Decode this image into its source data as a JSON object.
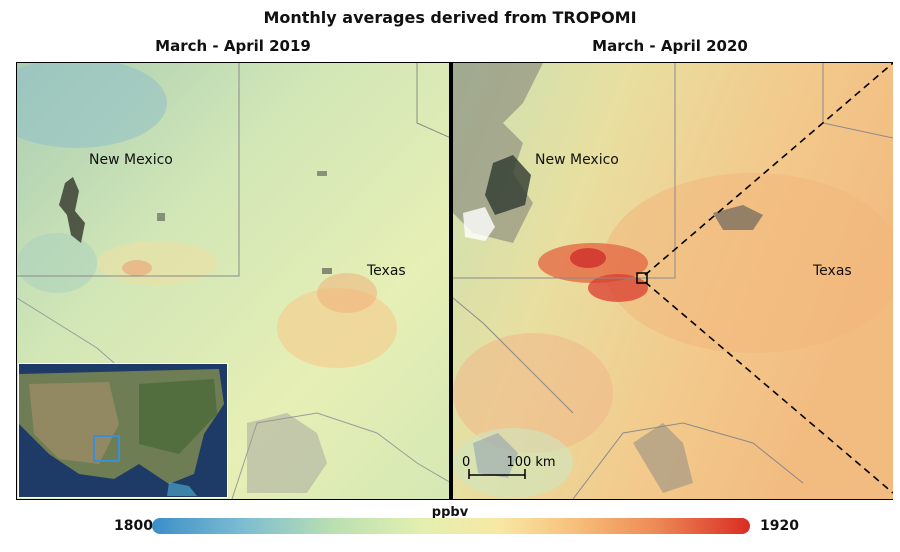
{
  "figure": {
    "title": "Monthly averages derived from TROPOMI",
    "panels": [
      {
        "title": "March - April 2019",
        "labels": [
          "New Mexico",
          "Texas"
        ]
      },
      {
        "title": "March - April 2020",
        "labels": [
          "New Mexico",
          "Texas"
        ]
      }
    ],
    "scale_bar": {
      "start": "0",
      "end": "100 km"
    },
    "colorbar": {
      "unit": "ppbv",
      "min": "1800",
      "max": "1920",
      "colors": [
        "#3a8fc7",
        "#b9dfb2",
        "#f8e8a4",
        "#ee8b56",
        "#d92c24"
      ]
    }
  }
}
